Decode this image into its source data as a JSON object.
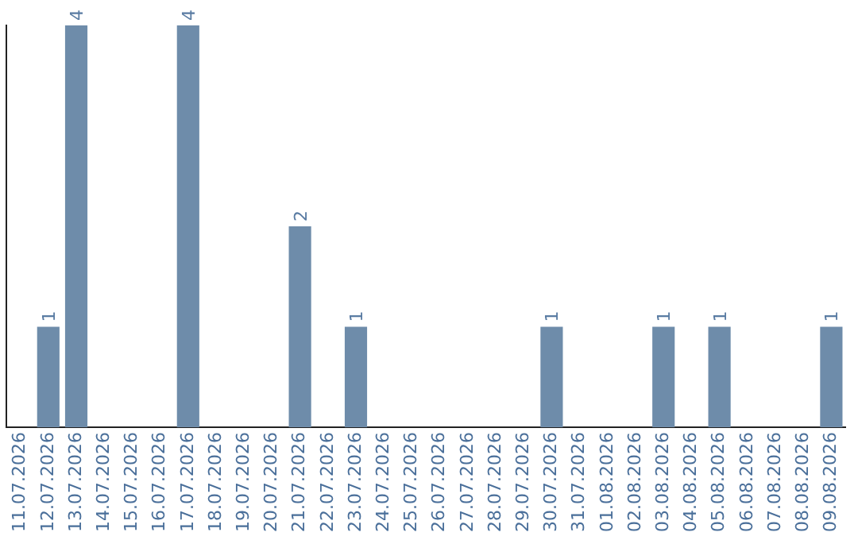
{
  "chart_data": {
    "type": "bar",
    "categories": [
      "11.07.2026",
      "12.07.2026",
      "13.07.2026",
      "14.07.2026",
      "15.07.2026",
      "16.07.2026",
      "17.07.2026",
      "18.07.2026",
      "19.07.2026",
      "20.07.2026",
      "21.07.2026",
      "22.07.2026",
      "23.07.2026",
      "24.07.2026",
      "25.07.2026",
      "26.07.2026",
      "27.07.2026",
      "28.07.2026",
      "29.07.2026",
      "30.07.2026",
      "31.07.2026",
      "01.08.2026",
      "02.08.2026",
      "03.08.2026",
      "04.08.2026",
      "05.08.2026",
      "06.08.2026",
      "07.08.2026",
      "08.08.2026",
      "09.08.2026"
    ],
    "values": [
      0,
      1,
      4,
      0,
      0,
      0,
      4,
      0,
      0,
      0,
      2,
      0,
      1,
      0,
      0,
      0,
      0,
      0,
      0,
      1,
      0,
      0,
      0,
      1,
      0,
      1,
      0,
      0,
      0,
      1
    ],
    "value_labels": [
      null,
      "1",
      "4",
      null,
      null,
      null,
      "4",
      null,
      null,
      null,
      "2",
      null,
      "1",
      null,
      null,
      null,
      null,
      null,
      null,
      "1",
      null,
      null,
      null,
      "1",
      null,
      "1",
      null,
      null,
      null,
      "1"
    ],
    "color": "#6e8caa",
    "grid": false,
    "legend": false,
    "tick_labels": "x"
  }
}
